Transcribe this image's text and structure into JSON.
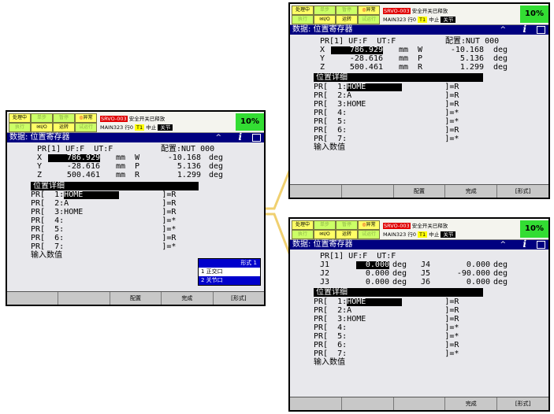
{
  "status": {
    "leds_row1": [
      "处理中",
      "单步",
      "暂停",
      "异常"
    ],
    "leds_row2": [
      "执行",
      "I/O",
      "运转",
      "试运行"
    ],
    "alarm_code": "SRVO-003",
    "alarm_text": "安全开关已释放",
    "program": "MAIN323",
    "line_label": "行0",
    "t1": "T1",
    "stop": "中止",
    "joint": "关节",
    "percent": "10%"
  },
  "title": "数据: 位置寄存器",
  "caret": "^",
  "info": "i",
  "header_line": "PR[1] UF:F  UT:F",
  "config": "配置:NUT 000",
  "cart_rows": [
    {
      "axis": "X",
      "value": "786.929",
      "unit": "mm",
      "axis2": "W",
      "value2": "-10.168",
      "unit2": "deg"
    },
    {
      "axis": "Y",
      "value": "-28.616",
      "unit": "mm",
      "axis2": "P",
      "value2": "5.136",
      "unit2": "deg"
    },
    {
      "axis": "Z",
      "value": "500.461",
      "unit": "mm",
      "axis2": "R",
      "value2": "1.299",
      "unit2": "deg"
    }
  ],
  "joint_rows": [
    {
      "a": "J1",
      "v": "0.000",
      "u": "deg",
      "b": "J4",
      "w": "0.000",
      "u2": "deg"
    },
    {
      "a": "J2",
      "v": "0.000",
      "u": "deg",
      "b": "J5",
      "w": "-90.000",
      "u2": "deg"
    },
    {
      "a": "J3",
      "v": "0.000",
      "u": "deg",
      "b": "J6",
      "w": "0.000",
      "u2": "deg"
    }
  ],
  "section": "位置详细",
  "pr_rows_cart": [
    {
      "idx": "1",
      "name": "HOME",
      "flag": "R"
    },
    {
      "idx": "2",
      "name": "A",
      "flag": "R"
    },
    {
      "idx": "3",
      "name": "HOME",
      "flag": "R"
    },
    {
      "idx": "4",
      "name": "",
      "flag": "*"
    },
    {
      "idx": "5",
      "name": "",
      "flag": "*"
    },
    {
      "idx": "6",
      "name": "",
      "flag": "R"
    },
    {
      "idx": "7",
      "name": "",
      "flag": "*"
    }
  ],
  "input_prompt": "输入数值",
  "fkeys": [
    "",
    "",
    "配置",
    "完成",
    "[形式]"
  ],
  "fkeys_joint": [
    "",
    "",
    "",
    "完成",
    "[形式]"
  ],
  "popup": {
    "header": "形式  1",
    "item1": "1 正交口",
    "item2": "2 关节口"
  }
}
